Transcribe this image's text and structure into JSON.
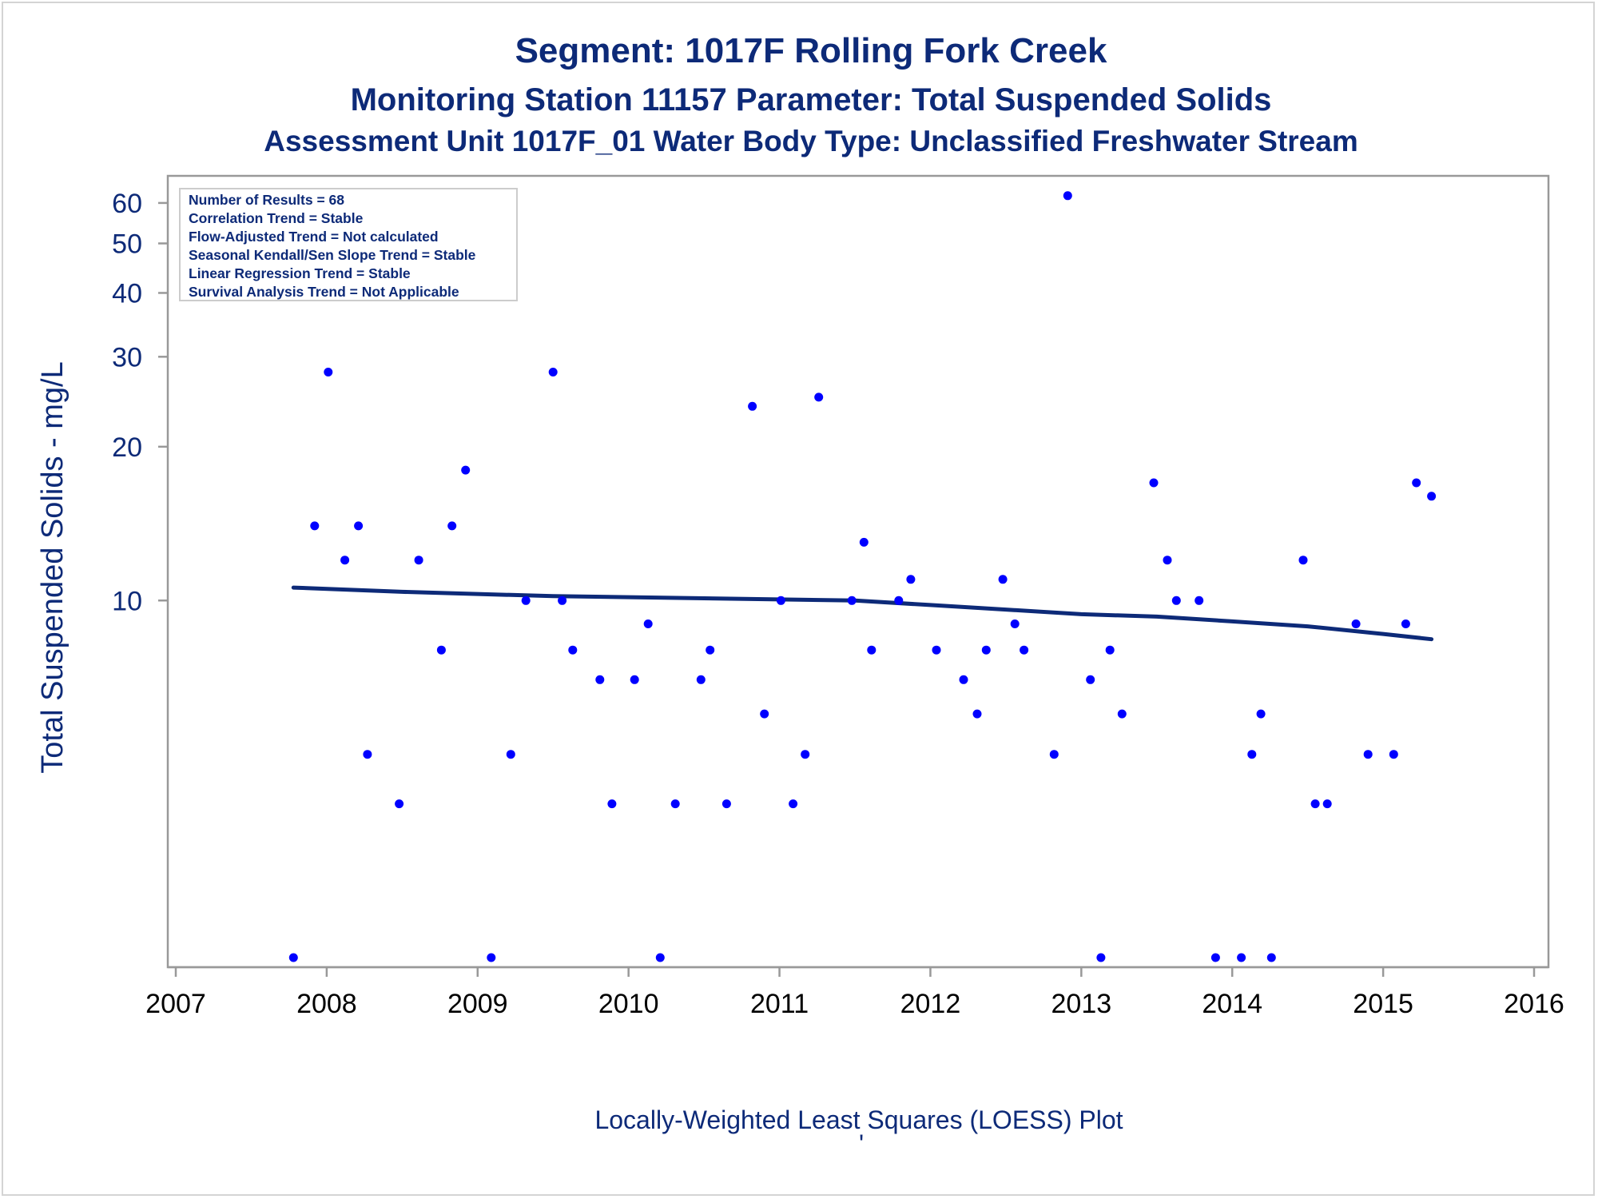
{
  "colors": {
    "title": "#0d2a78",
    "point": "#0000ff",
    "trend": "#0d2a78",
    "axis": "#999999"
  },
  "chart_data": {
    "type": "scatter",
    "title": "Segment: 1017F  Rolling Fork Creek",
    "subtitle": "Monitoring Station 11157 Parameter: Total Suspended Solids",
    "subtitle2": "Assessment Unit 1017F_01   Water Body Type: Unclassified Freshwater Stream",
    "xlabel": "",
    "ylabel": "Total Suspended Solids - mg/L",
    "footer": "Locally-Weighted Least Squares (LOESS) Plot",
    "footer_mark": "'",
    "y_scale": "log",
    "xlim": [
      2007,
      2016
    ],
    "ylim": [
      2,
      64
    ],
    "x_ticks": [
      2007,
      2008,
      2009,
      2010,
      2011,
      2012,
      2013,
      2014,
      2015,
      2016
    ],
    "x_tick_labels": [
      "2007",
      "2008",
      "2009",
      "2010",
      "2011",
      "2012",
      "2013",
      "2014",
      "2015",
      "2016"
    ],
    "y_ticks": [
      10,
      20,
      30,
      40,
      50,
      60
    ],
    "y_tick_labels": [
      "10",
      "20",
      "30",
      "40",
      "50",
      "60"
    ],
    "legend_position": "top-left",
    "stats": [
      "Number of Results = 68",
      "Correlation Trend = Stable",
      "Flow-Adjusted Trend = Not calculated",
      "Seasonal Kendall/Sen Slope Trend = Stable",
      "Linear Regression Trend = Stable",
      "Survival Analysis Trend = Not Applicable"
    ],
    "points": [
      {
        "x": 2007.78,
        "y": 2
      },
      {
        "x": 2007.92,
        "y": 14
      },
      {
        "x": 2008.01,
        "y": 28
      },
      {
        "x": 2008.12,
        "y": 12
      },
      {
        "x": 2008.21,
        "y": 14
      },
      {
        "x": 2008.27,
        "y": 5
      },
      {
        "x": 2008.48,
        "y": 4
      },
      {
        "x": 2008.61,
        "y": 12
      },
      {
        "x": 2008.76,
        "y": 8
      },
      {
        "x": 2008.83,
        "y": 14
      },
      {
        "x": 2008.92,
        "y": 18
      },
      {
        "x": 2009.09,
        "y": 2
      },
      {
        "x": 2009.22,
        "y": 5
      },
      {
        "x": 2009.32,
        "y": 10
      },
      {
        "x": 2009.5,
        "y": 28
      },
      {
        "x": 2009.56,
        "y": 10
      },
      {
        "x": 2009.63,
        "y": 8
      },
      {
        "x": 2009.81,
        "y": 7
      },
      {
        "x": 2009.89,
        "y": 4
      },
      {
        "x": 2010.04,
        "y": 7
      },
      {
        "x": 2010.13,
        "y": 9
      },
      {
        "x": 2010.21,
        "y": 2
      },
      {
        "x": 2010.31,
        "y": 4
      },
      {
        "x": 2010.48,
        "y": 7
      },
      {
        "x": 2010.54,
        "y": 8
      },
      {
        "x": 2010.65,
        "y": 4
      },
      {
        "x": 2010.82,
        "y": 24
      },
      {
        "x": 2010.9,
        "y": 6
      },
      {
        "x": 2011.01,
        "y": 10
      },
      {
        "x": 2011.09,
        "y": 4
      },
      {
        "x": 2011.17,
        "y": 5
      },
      {
        "x": 2011.26,
        "y": 25
      },
      {
        "x": 2011.48,
        "y": 10
      },
      {
        "x": 2011.56,
        "y": 13
      },
      {
        "x": 2011.61,
        "y": 8
      },
      {
        "x": 2011.79,
        "y": 10
      },
      {
        "x": 2011.87,
        "y": 11
      },
      {
        "x": 2012.04,
        "y": 8
      },
      {
        "x": 2012.22,
        "y": 7
      },
      {
        "x": 2012.31,
        "y": 6
      },
      {
        "x": 2012.37,
        "y": 8
      },
      {
        "x": 2012.48,
        "y": 11
      },
      {
        "x": 2012.56,
        "y": 9
      },
      {
        "x": 2012.62,
        "y": 8
      },
      {
        "x": 2012.82,
        "y": 5
      },
      {
        "x": 2012.91,
        "y": 62
      },
      {
        "x": 2013.06,
        "y": 7
      },
      {
        "x": 2013.13,
        "y": 2
      },
      {
        "x": 2013.19,
        "y": 8
      },
      {
        "x": 2013.27,
        "y": 6
      },
      {
        "x": 2013.48,
        "y": 17
      },
      {
        "x": 2013.57,
        "y": 12
      },
      {
        "x": 2013.63,
        "y": 10
      },
      {
        "x": 2013.78,
        "y": 10
      },
      {
        "x": 2013.89,
        "y": 2
      },
      {
        "x": 2014.06,
        "y": 2
      },
      {
        "x": 2014.13,
        "y": 5
      },
      {
        "x": 2014.19,
        "y": 6
      },
      {
        "x": 2014.26,
        "y": 2
      },
      {
        "x": 2014.47,
        "y": 12
      },
      {
        "x": 2014.55,
        "y": 4
      },
      {
        "x": 2014.63,
        "y": 4
      },
      {
        "x": 2014.82,
        "y": 9
      },
      {
        "x": 2014.9,
        "y": 5
      },
      {
        "x": 2015.07,
        "y": 5
      },
      {
        "x": 2015.15,
        "y": 9
      },
      {
        "x": 2015.22,
        "y": 17
      },
      {
        "x": 2015.32,
        "y": 16
      }
    ],
    "trend_line": {
      "name": "LOESS",
      "points": [
        {
          "x": 2007.78,
          "y": 10.6
        },
        {
          "x": 2008.5,
          "y": 10.4
        },
        {
          "x": 2009.5,
          "y": 10.2
        },
        {
          "x": 2010.5,
          "y": 10.1
        },
        {
          "x": 2011.5,
          "y": 10.0
        },
        {
          "x": 2012.0,
          "y": 9.8
        },
        {
          "x": 2012.5,
          "y": 9.6
        },
        {
          "x": 2013.0,
          "y": 9.4
        },
        {
          "x": 2013.5,
          "y": 9.3
        },
        {
          "x": 2014.0,
          "y": 9.1
        },
        {
          "x": 2014.5,
          "y": 8.9
        },
        {
          "x": 2015.0,
          "y": 8.6
        },
        {
          "x": 2015.32,
          "y": 8.4
        }
      ]
    }
  }
}
